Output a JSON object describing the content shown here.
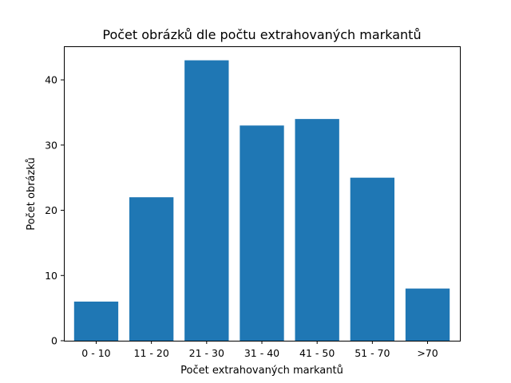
{
  "chart_data": {
    "type": "bar",
    "title": "Počet obrázků dle počtu extrahovaných markantů",
    "xlabel": "Počet extrahovaných markantů",
    "ylabel": "Počet obrázků",
    "categories": [
      "0 - 10",
      "11 - 20",
      "21 - 30",
      "31 - 40",
      "41 - 50",
      "51 - 70",
      ">70"
    ],
    "values": [
      6,
      22,
      43,
      33,
      34,
      25,
      8
    ],
    "ylim": [
      0,
      45.15
    ],
    "yticks": [
      0,
      10,
      20,
      30,
      40
    ],
    "bar_color": "#1f77b4",
    "grid": false,
    "legend": "none"
  }
}
